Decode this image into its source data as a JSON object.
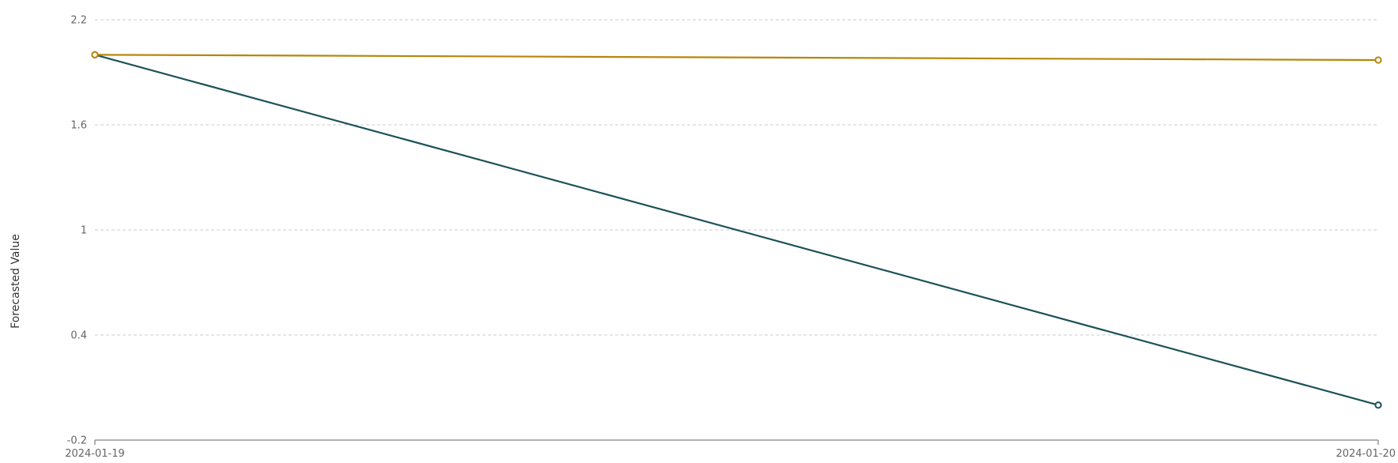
{
  "chart_data": {
    "type": "line",
    "title": "",
    "xlabel": "",
    "ylabel": "Forecasted Value",
    "x": [
      "2024-01-19",
      "2024-01-20"
    ],
    "ylim": [
      -0.2,
      2.2
    ],
    "yticks": [
      -0.2,
      0.4,
      1,
      1.6,
      2.2
    ],
    "grid": true,
    "legend": "none",
    "series": [
      {
        "color": "#1c5259",
        "values": [
          2.0,
          0.0
        ]
      },
      {
        "color": "#b8860b",
        "values": [
          2.0,
          1.97
        ]
      }
    ]
  }
}
